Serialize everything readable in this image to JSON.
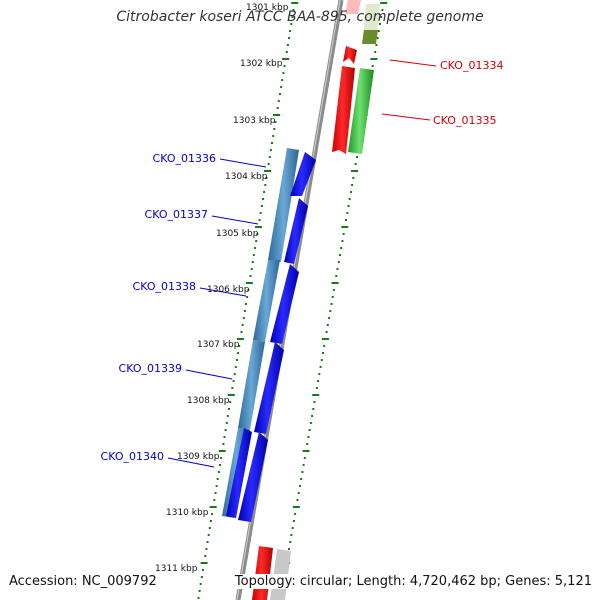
{
  "title": "Citrobacter koseri ATCC BAA-895, complete genome",
  "accession": "Accession: NC_009792",
  "summary": "Topology: circular; Length: 4,720,462 bp; Genes: 5,121",
  "colors": {
    "forward_cds": "#ff0000",
    "forward_gene": "#2ec43a",
    "reverse_cds": "#0000ee",
    "reverse_gene": "#4f8fbf",
    "backbone": "#8c8c8c",
    "ticks": "#1a7a1a",
    "forward_label": "#d00000",
    "reverse_label": "#0000cc"
  },
  "ruler": [
    {
      "label": "1301 kbp"
    },
    {
      "label": "1302 kbp"
    },
    {
      "label": "1303 kbp"
    },
    {
      "label": "1304 kbp"
    },
    {
      "label": "1305 kbp"
    },
    {
      "label": "1306 kbp"
    },
    {
      "label": "1307 kbp"
    },
    {
      "label": "1308 kbp"
    },
    {
      "label": "1309 kbp"
    },
    {
      "label": "1310 kbp"
    },
    {
      "label": "1311 kbp"
    }
  ],
  "gene_labels": [
    {
      "text": "CKO_01334",
      "strand": "forward"
    },
    {
      "text": "CKO_01335",
      "strand": "forward"
    },
    {
      "text": "CKO_01336",
      "strand": "reverse"
    },
    {
      "text": "CKO_01337",
      "strand": "reverse"
    },
    {
      "text": "CKO_01338",
      "strand": "reverse"
    },
    {
      "text": "CKO_01339",
      "strand": "reverse"
    },
    {
      "text": "CKO_01340",
      "strand": "reverse"
    }
  ]
}
